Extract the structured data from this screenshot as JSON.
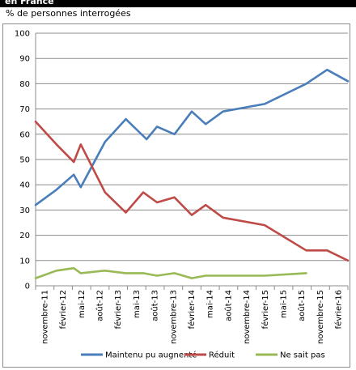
{
  "header": {
    "title": "en France",
    "subtitle": "% de personnes interrogées"
  },
  "chart_data": {
    "type": "line",
    "title": "en France",
    "subtitle": "% de personnes interrogées",
    "categories": [
      "novembre-11",
      "février-12",
      "mai-12",
      "août-12",
      "février-13",
      "mai-13",
      "août-13",
      "novembre-13",
      "février-14",
      "mai-14",
      "août-14",
      "novembre-14",
      "février-15",
      "mai-15",
      "août-15",
      "novembre-15",
      "février-16"
    ],
    "ylim": [
      0,
      100
    ],
    "yticks": [
      0,
      10,
      20,
      30,
      40,
      50,
      60,
      70,
      80,
      90,
      100
    ],
    "grid": true,
    "legend_position": "bottom",
    "series": [
      {
        "name": "Maintenu pu augnenté",
        "color": "#4a7ebb",
        "points": [
          {
            "t": 0,
            "y": 32
          },
          {
            "t": 3,
            "y": 38
          },
          {
            "t": 5.5,
            "y": 44
          },
          {
            "t": 6.5,
            "y": 39
          },
          {
            "t": 10,
            "y": 57
          },
          {
            "t": 13,
            "y": 66
          },
          {
            "t": 16,
            "y": 58
          },
          {
            "t": 17.5,
            "y": 63
          },
          {
            "t": 20,
            "y": 60
          },
          {
            "t": 22.5,
            "y": 69
          },
          {
            "t": 24.5,
            "y": 64
          },
          {
            "t": 27,
            "y": 69
          },
          {
            "t": 33,
            "y": 72
          },
          {
            "t": 39,
            "y": 80
          },
          {
            "t": 42,
            "y": 85.5
          },
          {
            "t": 45,
            "y": 81
          }
        ]
      },
      {
        "name": "Réduit",
        "color": "#be4b48",
        "points": [
          {
            "t": 0,
            "y": 65
          },
          {
            "t": 3,
            "y": 56
          },
          {
            "t": 5.5,
            "y": 49
          },
          {
            "t": 6.5,
            "y": 56
          },
          {
            "t": 10,
            "y": 37
          },
          {
            "t": 13,
            "y": 29
          },
          {
            "t": 15.5,
            "y": 37
          },
          {
            "t": 17.5,
            "y": 33
          },
          {
            "t": 20,
            "y": 35
          },
          {
            "t": 22.5,
            "y": 28
          },
          {
            "t": 24.5,
            "y": 32
          },
          {
            "t": 27,
            "y": 27
          },
          {
            "t": 33,
            "y": 24
          },
          {
            "t": 39,
            "y": 14
          },
          {
            "t": 42,
            "y": 14
          },
          {
            "t": 45,
            "y": 10
          }
        ]
      },
      {
        "name": "Ne sait pas",
        "color": "#98b954",
        "points": [
          {
            "t": 0,
            "y": 3
          },
          {
            "t": 3,
            "y": 6
          },
          {
            "t": 5.5,
            "y": 7
          },
          {
            "t": 6.5,
            "y": 5
          },
          {
            "t": 10,
            "y": 6
          },
          {
            "t": 13,
            "y": 5
          },
          {
            "t": 15.5,
            "y": 5
          },
          {
            "t": 17.5,
            "y": 4
          },
          {
            "t": 20,
            "y": 5
          },
          {
            "t": 22.5,
            "y": 3
          },
          {
            "t": 24.5,
            "y": 4
          },
          {
            "t": 27,
            "y": 4
          },
          {
            "t": 33,
            "y": 4
          },
          {
            "t": 39,
            "y": 5
          }
        ]
      }
    ]
  }
}
